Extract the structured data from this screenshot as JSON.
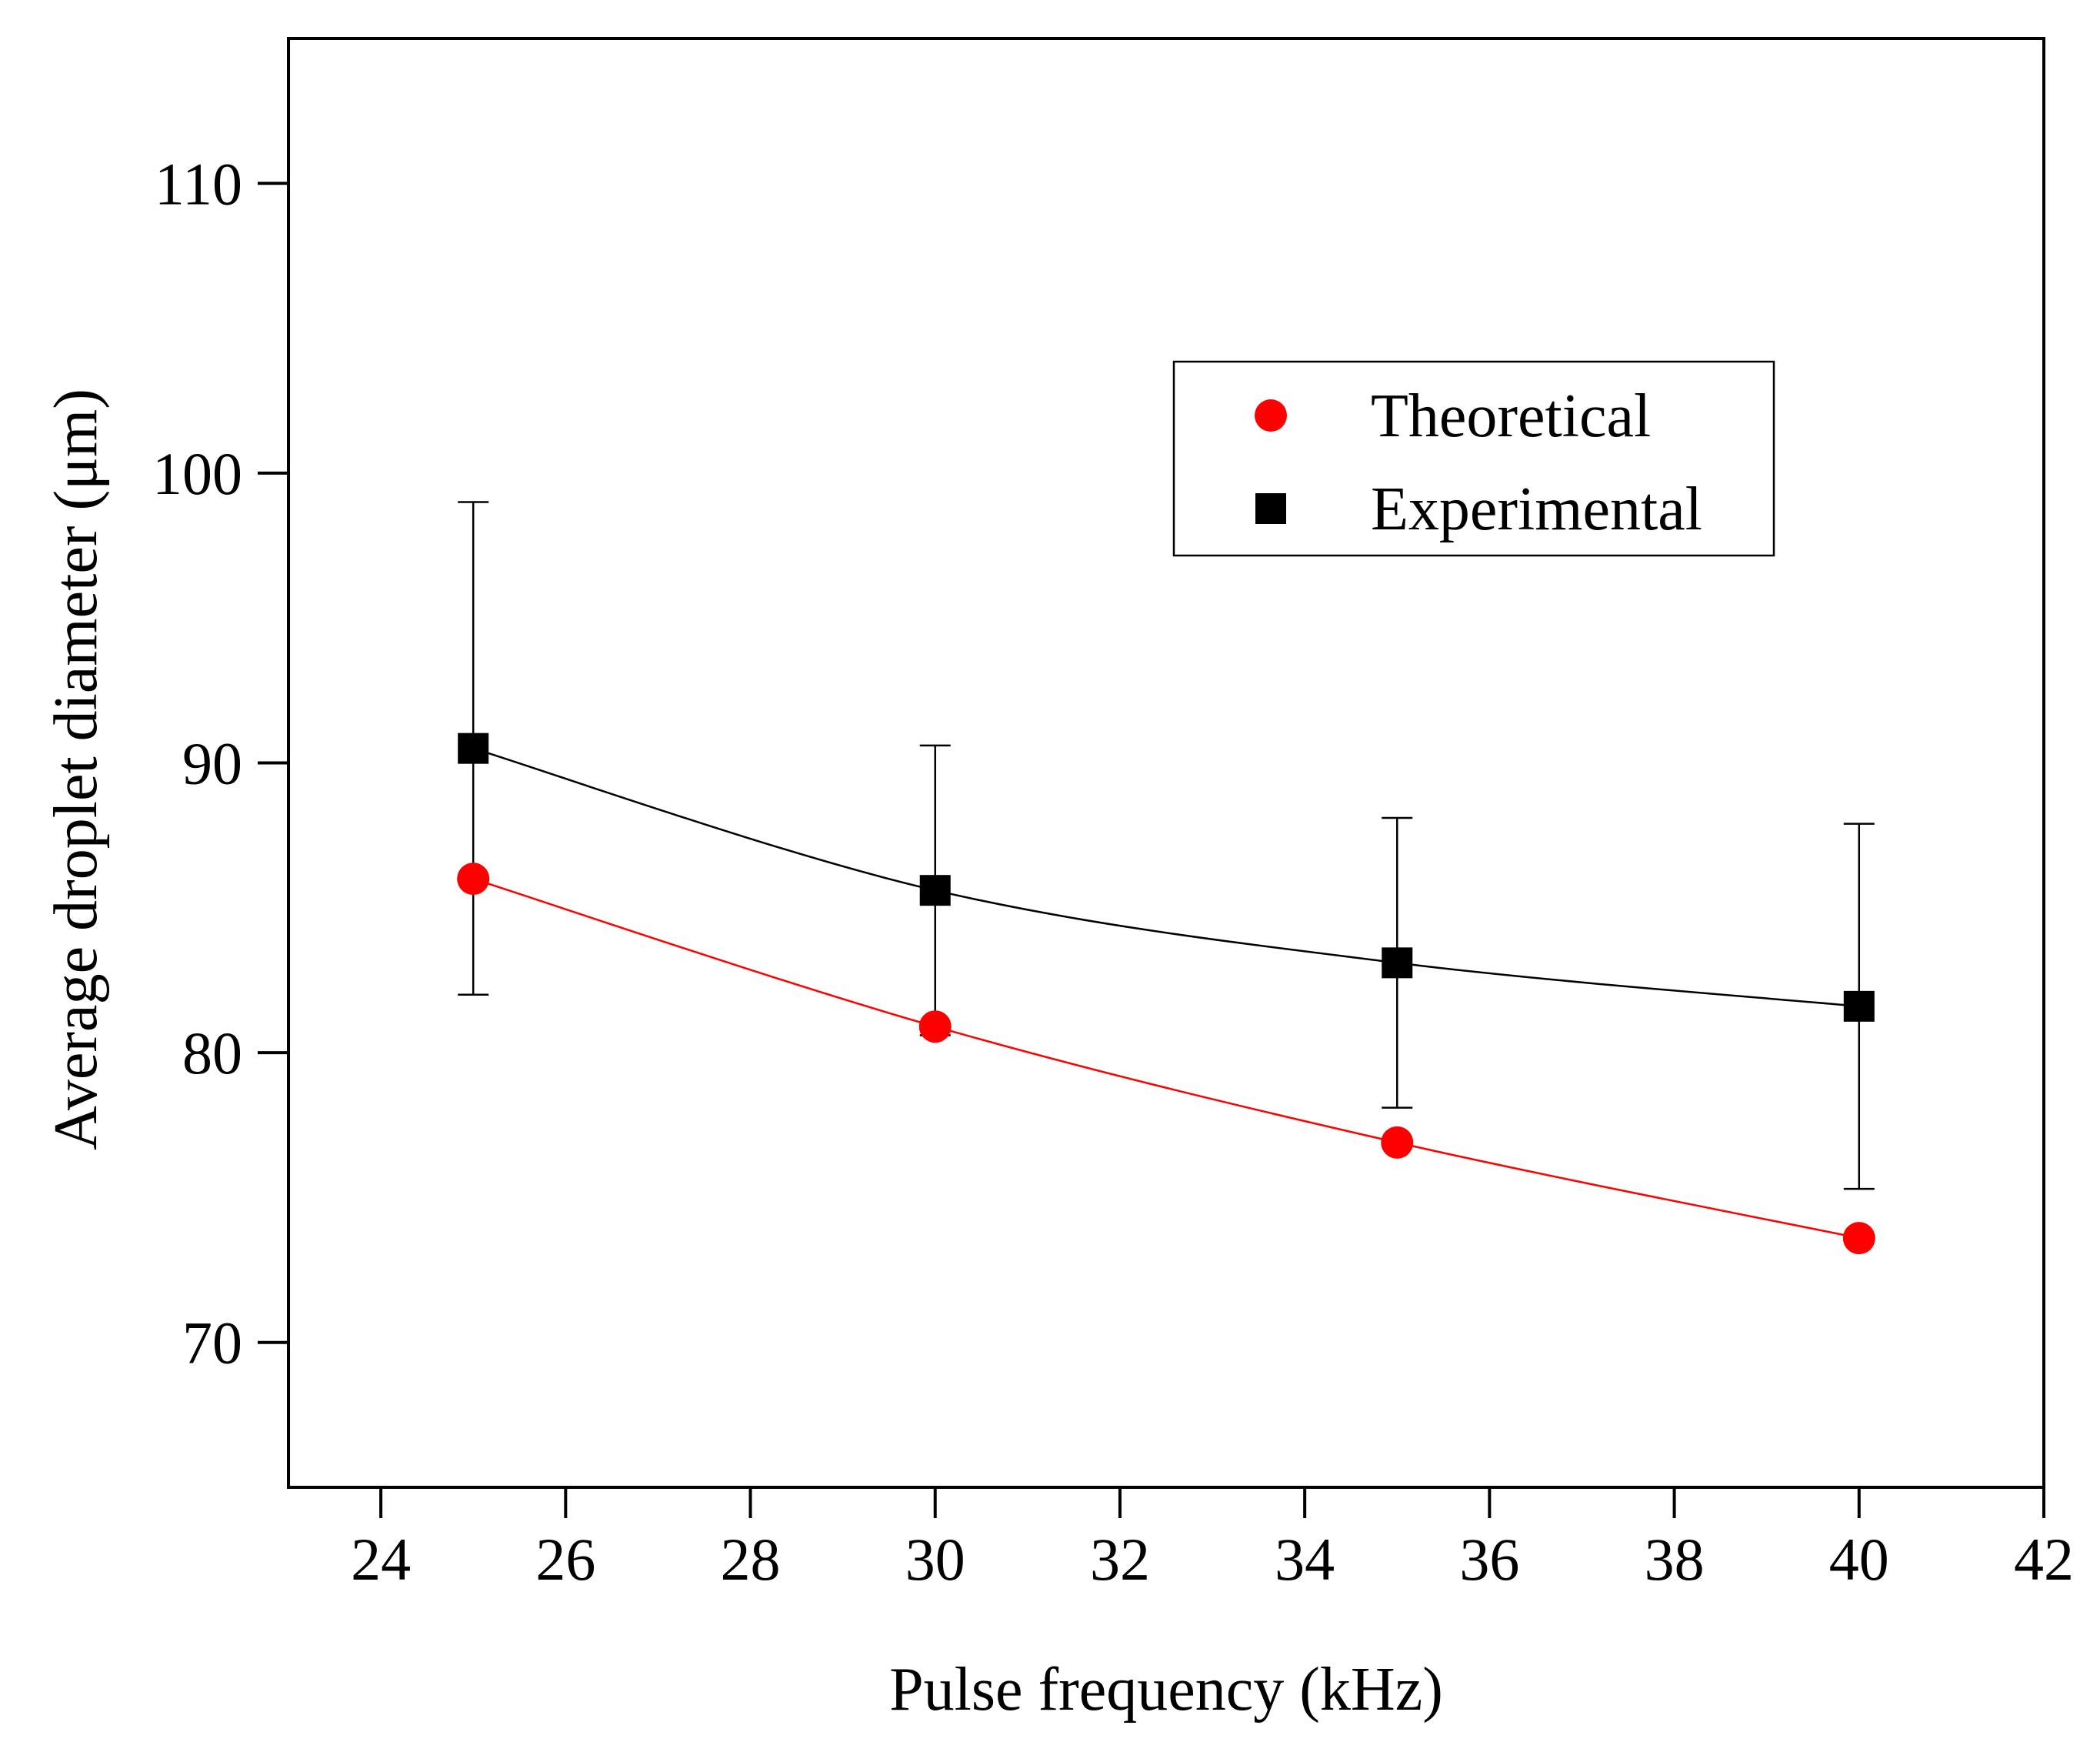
{
  "chart_data": {
    "type": "scatter",
    "title": "",
    "xlabel": "Pulse frequency (kHz)",
    "ylabel": "Average droplet diameter (μm)",
    "xlim": [
      23,
      42
    ],
    "ylim": [
      65,
      115
    ],
    "xticks": [
      24,
      26,
      28,
      30,
      32,
      34,
      36,
      38,
      40,
      42
    ],
    "yticks": [
      70,
      80,
      90,
      100,
      110
    ],
    "grid": false,
    "legend": "upper right",
    "series": [
      {
        "name": "Theoretical",
        "marker": "circle",
        "color": "#ff0000",
        "line": "smooth",
        "x": [
          25,
          30,
          35,
          40
        ],
        "y": [
          86.0,
          80.9,
          76.9,
          73.6
        ]
      },
      {
        "name": "Experimental",
        "marker": "square",
        "color": "#000000",
        "line": "smooth",
        "x": [
          25,
          30,
          35,
          40
        ],
        "y": [
          90.5,
          85.6,
          83.1,
          81.6
        ],
        "error": [
          8.5,
          5.0,
          5.0,
          6.3
        ]
      }
    ]
  }
}
